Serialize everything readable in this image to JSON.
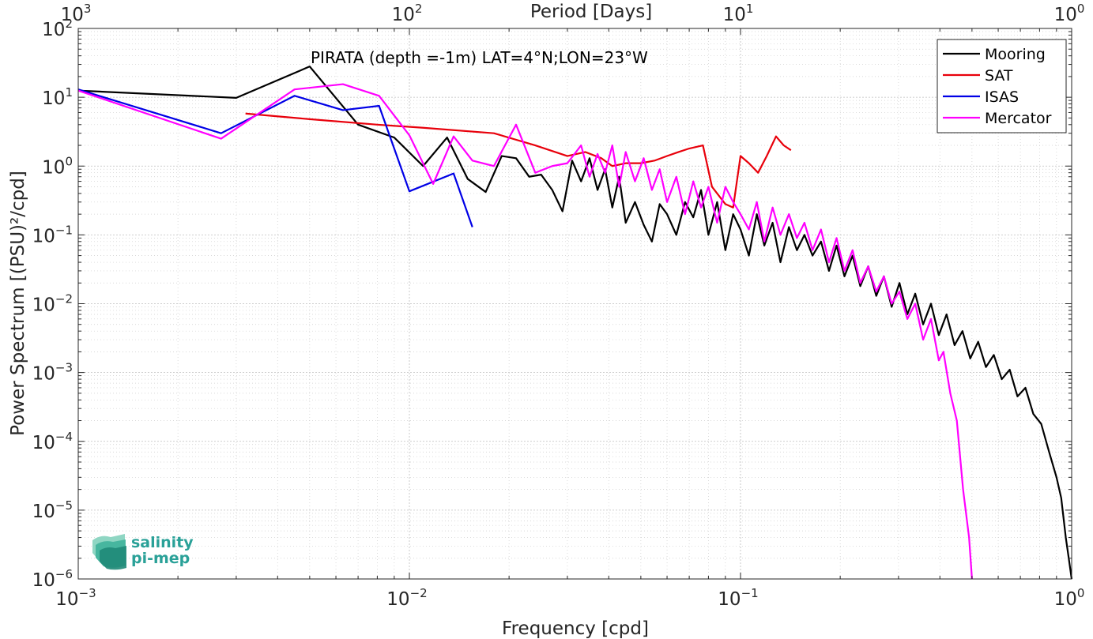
{
  "chart_data": {
    "type": "line",
    "x_scale": "log",
    "y_scale": "log",
    "xlim": [
      0.001,
      1
    ],
    "ylim": [
      1e-06,
      100
    ],
    "grid": true,
    "legend_position": "top-right",
    "xlabel": "Frequency [cpd]",
    "ylabel": "Power Spectrum [(PSU)²/cpd]",
    "top_axis_label": "Period [Days]",
    "top_axis_ticks": [
      {
        "base": "10",
        "exp": "3",
        "freq": 0.001
      },
      {
        "base": "10",
        "exp": "2",
        "freq": 0.01
      },
      {
        "base": "10",
        "exp": "1",
        "freq": 0.1
      },
      {
        "base": "10",
        "exp": "0",
        "freq": 1
      }
    ],
    "x_ticks": [
      {
        "base": "10",
        "exp": "-3",
        "value": 0.001
      },
      {
        "base": "10",
        "exp": "-2",
        "value": 0.01
      },
      {
        "base": "10",
        "exp": "-1",
        "value": 0.1
      },
      {
        "base": "10",
        "exp": "0",
        "value": 1
      }
    ],
    "y_ticks": [
      {
        "base": "10",
        "exp": "2",
        "value": 100
      },
      {
        "base": "10",
        "exp": "1",
        "value": 10
      },
      {
        "base": "10",
        "exp": "0",
        "value": 1
      },
      {
        "base": "10",
        "exp": "-1",
        "value": 0.1
      },
      {
        "base": "10",
        "exp": "-2",
        "value": 0.01
      },
      {
        "base": "10",
        "exp": "-3",
        "value": 0.001
      },
      {
        "base": "10",
        "exp": "-4",
        "value": 0.0001
      },
      {
        "base": "10",
        "exp": "-5",
        "value": 1e-05
      },
      {
        "base": "10",
        "exp": "-6",
        "value": 1e-06
      }
    ],
    "annotation": "PIRATA (depth =-1m) LAT=4°N;LON=23°W",
    "series": [
      {
        "name": "Mooring",
        "color": "#000000",
        "x": [
          0.001,
          0.003,
          0.005,
          0.007,
          0.009,
          0.011,
          0.013,
          0.015,
          0.017,
          0.019,
          0.021,
          0.023,
          0.025,
          0.027,
          0.029,
          0.031,
          0.033,
          0.035,
          0.037,
          0.039,
          0.041,
          0.043,
          0.045,
          0.048,
          0.051,
          0.054,
          0.057,
          0.06,
          0.064,
          0.068,
          0.072,
          0.076,
          0.08,
          0.085,
          0.09,
          0.095,
          0.1,
          0.106,
          0.112,
          0.118,
          0.125,
          0.132,
          0.14,
          0.148,
          0.156,
          0.165,
          0.175,
          0.185,
          0.195,
          0.206,
          0.218,
          0.23,
          0.243,
          0.257,
          0.271,
          0.286,
          0.302,
          0.319,
          0.337,
          0.356,
          0.376,
          0.397,
          0.419,
          0.443,
          0.468,
          0.494,
          0.522,
          0.551,
          0.582,
          0.615,
          0.65,
          0.686,
          0.725,
          0.766,
          0.809,
          0.855,
          0.9,
          0.93,
          0.96,
          0.98,
          1.0
        ],
        "y": [
          12.5,
          9.8,
          28,
          4.0,
          2.6,
          1.0,
          2.6,
          0.65,
          0.42,
          1.4,
          1.3,
          0.7,
          0.75,
          0.45,
          0.22,
          1.2,
          0.6,
          1.3,
          0.45,
          0.9,
          0.25,
          0.7,
          0.15,
          0.3,
          0.14,
          0.08,
          0.28,
          0.2,
          0.1,
          0.3,
          0.18,
          0.45,
          0.1,
          0.3,
          0.06,
          0.2,
          0.12,
          0.05,
          0.2,
          0.07,
          0.15,
          0.04,
          0.13,
          0.06,
          0.1,
          0.05,
          0.08,
          0.03,
          0.07,
          0.025,
          0.05,
          0.018,
          0.035,
          0.013,
          0.025,
          0.009,
          0.02,
          0.007,
          0.014,
          0.005,
          0.01,
          0.0035,
          0.007,
          0.0025,
          0.004,
          0.0016,
          0.0028,
          0.0012,
          0.0018,
          0.0008,
          0.0011,
          0.00045,
          0.0006,
          0.00025,
          0.00018,
          7e-05,
          3e-05,
          1.5e-05,
          4e-06,
          2e-06,
          1e-06
        ]
      },
      {
        "name": "SAT",
        "color": "#e8000b",
        "x": [
          0.0032,
          0.005,
          0.008,
          0.011,
          0.018,
          0.024,
          0.03,
          0.034,
          0.038,
          0.041,
          0.045,
          0.05,
          0.055,
          0.06,
          0.065,
          0.07,
          0.077,
          0.082,
          0.09,
          0.095,
          0.1,
          0.106,
          0.113,
          0.12,
          0.128,
          0.135,
          0.142
        ],
        "y": [
          5.8,
          4.8,
          4.0,
          3.6,
          3.0,
          2.0,
          1.4,
          1.6,
          1.3,
          1.0,
          1.1,
          1.1,
          1.2,
          1.4,
          1.6,
          1.8,
          2.0,
          0.5,
          0.28,
          0.25,
          1.4,
          1.1,
          0.8,
          1.4,
          2.7,
          2.0,
          1.7
        ]
      },
      {
        "name": "ISAS",
        "color": "#0000e6",
        "x": [
          0.001,
          0.0027,
          0.0045,
          0.0063,
          0.0081,
          0.01,
          0.0136,
          0.0155
        ],
        "y": [
          13,
          3.0,
          10.5,
          6.5,
          7.5,
          0.43,
          0.78,
          0.13
        ]
      },
      {
        "name": "Mercator",
        "color": "#ff00ff",
        "x": [
          0.001,
          0.0027,
          0.0045,
          0.0063,
          0.0081,
          0.01,
          0.0118,
          0.0136,
          0.0155,
          0.018,
          0.021,
          0.024,
          0.027,
          0.03,
          0.033,
          0.035,
          0.037,
          0.039,
          0.041,
          0.043,
          0.045,
          0.048,
          0.051,
          0.054,
          0.057,
          0.06,
          0.064,
          0.068,
          0.072,
          0.076,
          0.08,
          0.085,
          0.09,
          0.095,
          0.1,
          0.106,
          0.112,
          0.118,
          0.125,
          0.132,
          0.14,
          0.148,
          0.156,
          0.165,
          0.175,
          0.185,
          0.195,
          0.206,
          0.218,
          0.23,
          0.243,
          0.257,
          0.271,
          0.286,
          0.302,
          0.319,
          0.337,
          0.356,
          0.376,
          0.397,
          0.41,
          0.43,
          0.45,
          0.47,
          0.49,
          0.5
        ],
        "y": [
          12.5,
          2.5,
          13,
          15.5,
          10.5,
          2.8,
          0.55,
          2.7,
          1.2,
          1.0,
          4.0,
          0.8,
          1.0,
          1.1,
          2.0,
          0.7,
          1.5,
          0.8,
          2.0,
          0.5,
          1.6,
          0.6,
          1.3,
          0.45,
          0.9,
          0.3,
          0.7,
          0.2,
          0.6,
          0.25,
          0.5,
          0.15,
          0.5,
          0.3,
          0.2,
          0.12,
          0.3,
          0.08,
          0.25,
          0.1,
          0.2,
          0.09,
          0.15,
          0.06,
          0.12,
          0.04,
          0.09,
          0.03,
          0.06,
          0.02,
          0.035,
          0.015,
          0.025,
          0.01,
          0.015,
          0.006,
          0.01,
          0.003,
          0.006,
          0.0015,
          0.002,
          0.0005,
          0.0002,
          2e-05,
          4e-06,
          1e-06
        ]
      }
    ]
  },
  "logo": {
    "line1": "salinity",
    "line2": "pi-mep"
  }
}
